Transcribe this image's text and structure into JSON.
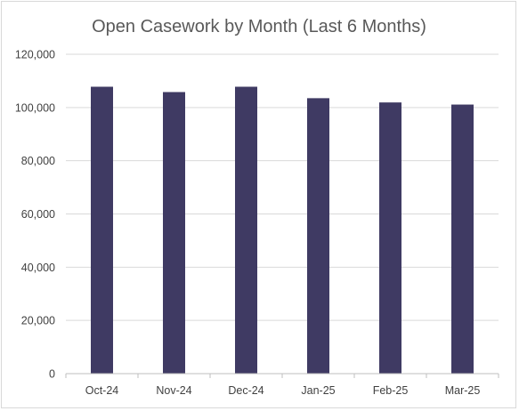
{
  "chart_data": {
    "type": "bar",
    "title": "Open Casework by Month (Last 6 Months)",
    "xlabel": "",
    "ylabel": "",
    "categories": [
      "Oct-24",
      "Nov-24",
      "Dec-24",
      "Jan-25",
      "Feb-25",
      "Mar-25"
    ],
    "series": [
      {
        "values": [
          107800,
          105800,
          107800,
          103500,
          101900,
          101100
        ],
        "color": "#3f3a63"
      }
    ],
    "ylim": [
      0,
      120000
    ],
    "yticks": [
      0,
      20000,
      40000,
      60000,
      80000,
      100000,
      120000
    ],
    "ytick_labels": [
      "0",
      "20,000",
      "40,000",
      "60,000",
      "80,000",
      "100,000",
      "120,000"
    ],
    "grid": true,
    "legend": "none"
  }
}
